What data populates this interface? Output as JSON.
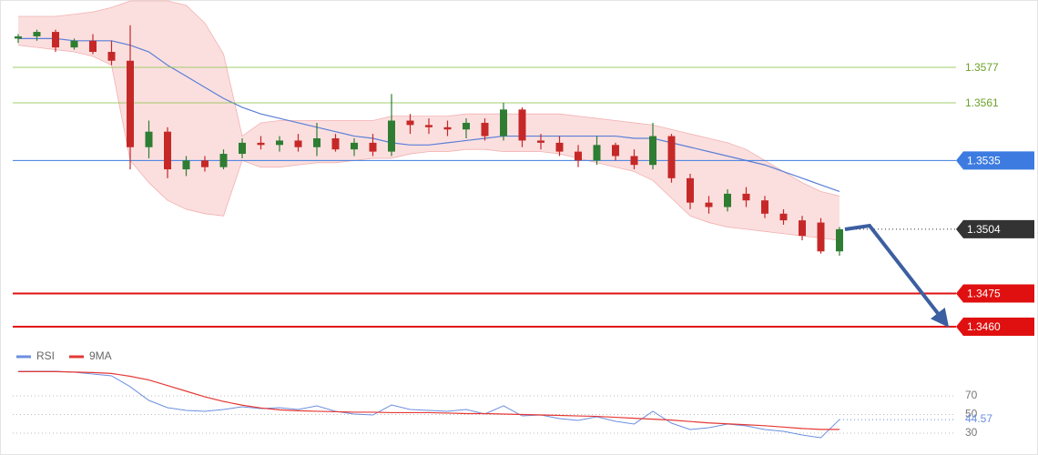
{
  "chart_data": [
    {
      "type": "candlestick",
      "ylim": [
        1.34514,
        1.36074
      ],
      "up_color": "#2e7d32",
      "down_color": "#c62828",
      "ma_color": "#5b7fd6",
      "band_color": "#f8c9c9",
      "open": [
        1.359,
        1.3591,
        1.3593,
        1.3586,
        1.3589,
        1.3584,
        1.358,
        1.3541,
        1.3548,
        1.3531,
        1.3535,
        1.3532,
        1.3538,
        1.3543,
        1.3542,
        1.3544,
        1.3541,
        1.3545,
        1.354,
        1.3543,
        1.3539,
        1.3553,
        1.3551,
        1.355,
        1.3549,
        1.3552,
        1.3546,
        1.3558,
        1.3544,
        1.3543,
        1.3539,
        1.3535,
        1.3542,
        1.3537,
        1.3533,
        1.3546,
        1.3527,
        1.3516,
        1.3514,
        1.352,
        1.3517,
        1.3511,
        1.3508,
        1.3507,
        1.3494
      ],
      "high": [
        1.3592,
        1.3594,
        1.3594,
        1.359,
        1.3592,
        1.3589,
        1.3596,
        1.3553,
        1.355,
        1.3537,
        1.3537,
        1.354,
        1.3545,
        1.3546,
        1.3546,
        1.3547,
        1.3552,
        1.3547,
        1.3545,
        1.3547,
        1.3565,
        1.3556,
        1.3554,
        1.3553,
        1.3554,
        1.3554,
        1.3561,
        1.3559,
        1.3547,
        1.3546,
        1.3542,
        1.3546,
        1.3543,
        1.354,
        1.3552,
        1.3547,
        1.3529,
        1.3519,
        1.3522,
        1.3523,
        1.3519,
        1.3513,
        1.351,
        1.3509,
        1.3505
      ],
      "low": [
        1.3588,
        1.3589,
        1.3584,
        1.3585,
        1.3583,
        1.3578,
        1.3531,
        1.3536,
        1.3527,
        1.3528,
        1.353,
        1.3531,
        1.3536,
        1.354,
        1.3539,
        1.3539,
        1.3537,
        1.3539,
        1.3537,
        1.3537,
        1.3537,
        1.3547,
        1.3547,
        1.3546,
        1.3545,
        1.3544,
        1.3544,
        1.3541,
        1.354,
        1.3537,
        1.3532,
        1.3533,
        1.3535,
        1.3531,
        1.3531,
        1.3525,
        1.3513,
        1.3511,
        1.3512,
        1.3514,
        1.3509,
        1.3506,
        1.3499,
        1.3493,
        1.3492
      ],
      "close": [
        1.3591,
        1.3593,
        1.3586,
        1.3589,
        1.3584,
        1.358,
        1.3541,
        1.3548,
        1.3531,
        1.3535,
        1.3532,
        1.3538,
        1.3543,
        1.3542,
        1.3544,
        1.3541,
        1.3545,
        1.354,
        1.3543,
        1.3539,
        1.3553,
        1.3551,
        1.355,
        1.3549,
        1.3552,
        1.3546,
        1.3558,
        1.3544,
        1.3543,
        1.3539,
        1.3535,
        1.3542,
        1.3537,
        1.3533,
        1.3546,
        1.3527,
        1.3516,
        1.3514,
        1.352,
        1.3517,
        1.3511,
        1.3508,
        1.3501,
        1.3494,
        1.3504
      ],
      "ma": [
        1.359,
        1.359,
        1.359,
        1.3589,
        1.3589,
        1.3589,
        1.3587,
        1.3584,
        1.3578,
        1.3573,
        1.3568,
        1.3563,
        1.3559,
        1.3556,
        1.3554,
        1.3552,
        1.355,
        1.3548,
        1.3546,
        1.3545,
        1.3543,
        1.3542,
        1.3542,
        1.3543,
        1.3544,
        1.3545,
        1.3546,
        1.3546,
        1.3546,
        1.3546,
        1.3546,
        1.3546,
        1.3546,
        1.3545,
        1.3545,
        1.3543,
        1.3541,
        1.3539,
        1.3537,
        1.3535,
        1.3533,
        1.353,
        1.3527,
        1.3524,
        1.3521
      ],
      "band_upper": [
        1.36,
        1.36,
        1.36,
        1.3601,
        1.3602,
        1.3604,
        1.3607,
        1.3607,
        1.3607,
        1.3605,
        1.3597,
        1.3583,
        1.3546,
        1.3552,
        1.3553,
        1.3553,
        1.3553,
        1.3553,
        1.3553,
        1.3553,
        1.3555,
        1.3555,
        1.3555,
        1.3555,
        1.3556,
        1.3556,
        1.3556,
        1.3556,
        1.3556,
        1.3556,
        1.3555,
        1.3554,
        1.3553,
        1.3552,
        1.3551,
        1.3549,
        1.3547,
        1.3545,
        1.3543,
        1.354,
        1.3535,
        1.353,
        1.3525,
        1.3521,
        1.3519
      ],
      "band_lower": [
        1.3587,
        1.3586,
        1.3585,
        1.3584,
        1.3582,
        1.3578,
        1.3535,
        1.3525,
        1.3517,
        1.3513,
        1.3511,
        1.351,
        1.3535,
        1.3532,
        1.3532,
        1.3533,
        1.3534,
        1.3534,
        1.3535,
        1.3536,
        1.3536,
        1.3538,
        1.3539,
        1.3539,
        1.354,
        1.354,
        1.3539,
        1.3539,
        1.3539,
        1.3538,
        1.3536,
        1.3534,
        1.3532,
        1.353,
        1.3526,
        1.3518,
        1.351,
        1.3507,
        1.3505,
        1.3504,
        1.3503,
        1.3502,
        1.3501,
        1.35,
        1.3499
      ],
      "levels": [
        {
          "value": 1.3577,
          "color": "#8bc34a",
          "box": false
        },
        {
          "value": 1.3561,
          "color": "#8bc34a",
          "box": false
        },
        {
          "value": 1.3535,
          "color": "#3d7be0",
          "box": true
        },
        {
          "value": 1.3504,
          "color": "#333333",
          "box": true,
          "dotted": true
        },
        {
          "value": 1.3475,
          "color": "#e01010",
          "box": true
        },
        {
          "value": 1.346,
          "label": "1.3460",
          "color": "#e01010",
          "box": true
        }
      ]
    },
    {
      "type": "line",
      "ylim": [
        20,
        100
      ],
      "yticks": [
        70,
        50,
        30
      ],
      "grid": true,
      "series": [
        {
          "name": "RSI",
          "color": "#6b8fe0",
          "values": [
            96.3,
            96.3,
            96.3,
            95.4,
            93.4,
            91.5,
            79.8,
            65.1,
            57.3,
            54.4,
            53.4,
            55.4,
            58.3,
            56.3,
            57.3,
            55.4,
            59.3,
            53.4,
            50.5,
            49.5,
            60.2,
            55.4,
            54.4,
            53.4,
            55.4,
            50.5,
            59.3,
            48.5,
            49.5,
            45.6,
            43.7,
            47.6,
            42.7,
            39.8,
            53.4,
            40.7,
            33.9,
            35.9,
            39.8,
            37.8,
            33.9,
            32,
            28,
            25.1,
            44.57
          ]
        },
        {
          "name": "9MA",
          "color": "#e53935",
          "values": [
            96,
            96,
            96,
            95.5,
            95,
            94,
            91,
            87,
            81,
            75,
            69,
            64,
            60,
            57,
            55,
            54,
            53.5,
            53,
            52.5,
            52.5,
            52,
            52,
            52,
            51.5,
            51,
            51,
            50.5,
            50,
            49.5,
            49,
            48.5,
            48,
            47,
            46,
            45,
            44,
            42.5,
            41,
            40,
            39,
            38,
            36.5,
            35,
            34,
            34
          ]
        }
      ]
    }
  ]
}
